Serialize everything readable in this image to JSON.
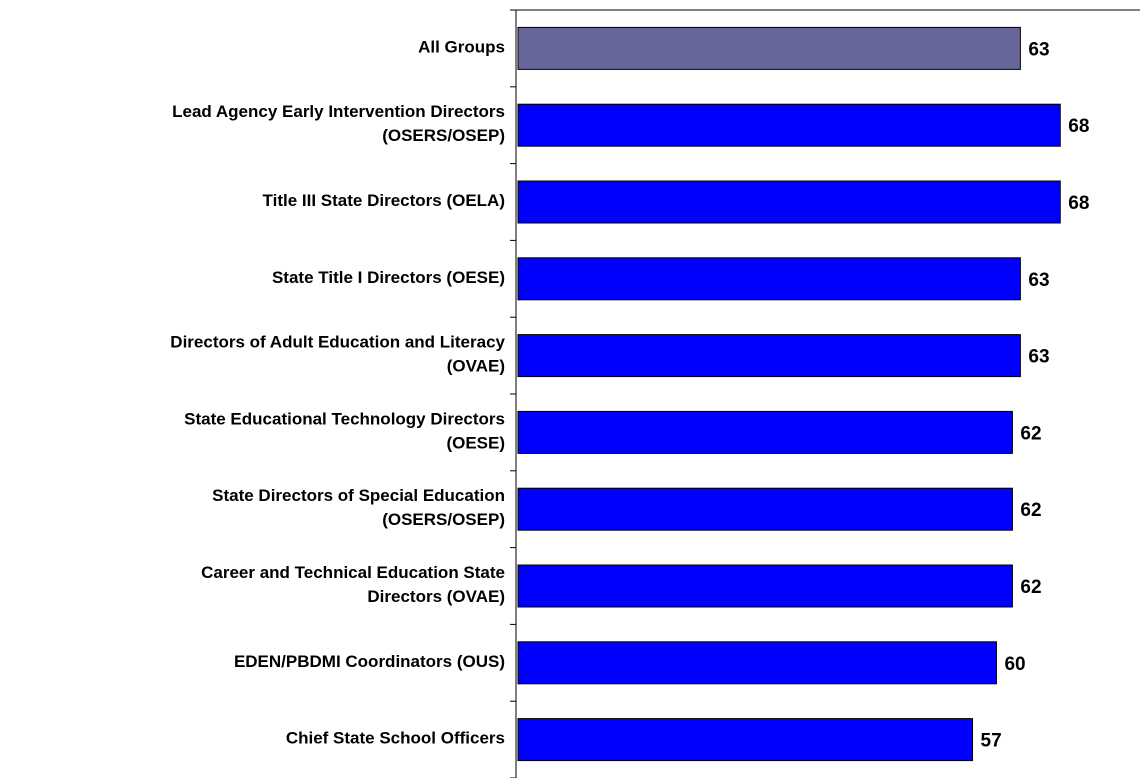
{
  "chart_data": {
    "type": "barh",
    "categories": [
      "All Groups",
      "Lead Agency Early Intervention Directors (OSERS/OSEP)",
      "Title III State Directors (OELA)",
      "State Title I Directors (OESE)",
      "Directors of Adult Education and Literacy (OVAE)",
      "State Educational Technology Directors (OESE)",
      "State Directors of Special Education (OSERS/OSEP)",
      "Career and Technical Education State Directors (OVAE)",
      "EDEN/PBDMI Coordinators (OUS)",
      "Chief State School Officers"
    ],
    "values": [
      63,
      68,
      68,
      63,
      63,
      62,
      62,
      62,
      60,
      57
    ],
    "colors": [
      "#666699",
      "#0000ff",
      "#0000ff",
      "#0000ff",
      "#0000ff",
      "#0000ff",
      "#0000ff",
      "#0000ff",
      "#0000ff",
      "#0000ff"
    ],
    "xlim": [
      0,
      78
    ]
  }
}
